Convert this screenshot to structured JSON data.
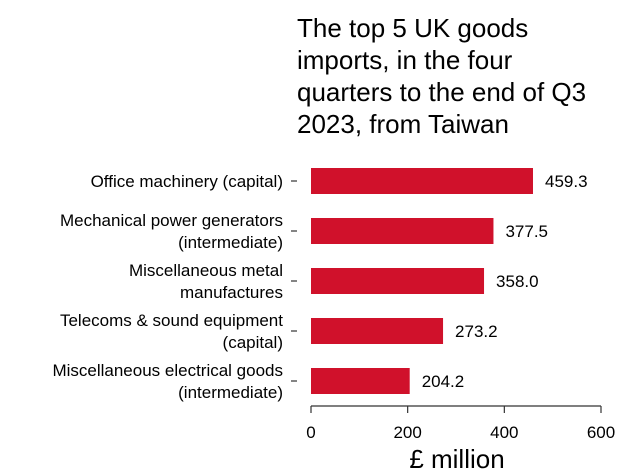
{
  "chart_data": {
    "type": "bar",
    "orientation": "horizontal",
    "title": "The top 5 UK goods imports, in the four quarters to the end of Q3 2023, from Taiwan",
    "title_lines": [
      "The top 5 UK goods",
      "imports, in the four",
      "quarters to the end of Q3",
      "2023, from Taiwan"
    ],
    "categories": [
      "Office machinery (capital)",
      "Mechanical power generators (intermediate)",
      "Miscellaneous metal manufactures",
      "Telecoms & sound equipment (capital)",
      "Miscellaneous electrical goods (intermediate)"
    ],
    "category_lines": [
      [
        "Office machinery (capital)"
      ],
      [
        "Mechanical power generators",
        "(intermediate)"
      ],
      [
        "Miscellaneous metal",
        "manufactures"
      ],
      [
        "Telecoms & sound equipment",
        "(capital)"
      ],
      [
        "Miscellaneous electrical goods",
        "(intermediate)"
      ]
    ],
    "values": [
      459.3,
      377.5,
      358.0,
      273.2,
      204.2
    ],
    "value_labels": [
      "459.3",
      "377.5",
      "358.0",
      "273.2",
      "204.2"
    ],
    "xlabel": "£ million",
    "ylabel": "",
    "xlim": [
      0,
      600
    ],
    "xticks": [
      0,
      200,
      400,
      600
    ],
    "grid": false,
    "bar_color": "#d0112b"
  }
}
